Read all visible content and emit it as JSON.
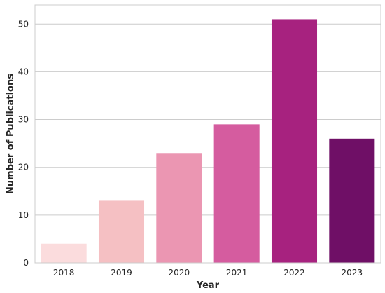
{
  "chart_data": {
    "type": "bar",
    "xlabel": "Year",
    "ylabel": "Number of Publications",
    "categories": [
      "2018",
      "2019",
      "2020",
      "2021",
      "2022",
      "2023"
    ],
    "values": [
      4,
      13,
      23,
      29,
      51,
      26
    ],
    "colors": [
      "#fbdcdd",
      "#f5c0c3",
      "#eb96b2",
      "#d55c9f",
      "#a7227f",
      "#6f0f66"
    ],
    "ylim": [
      0,
      54
    ],
    "yticks": [
      0,
      10,
      20,
      30,
      40,
      50
    ],
    "grid": "horizontal",
    "grid_color": "#cccccc",
    "frame_color": "#cccccc",
    "legend": "none"
  }
}
